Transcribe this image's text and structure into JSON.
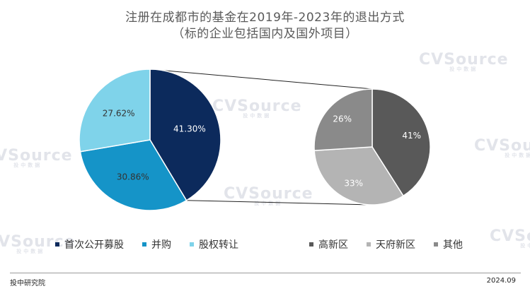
{
  "title": "注册在成都市的基金在2019年-2023年的退出方式",
  "subtitle": "（标的企业包括国内及国外项目）",
  "footer": {
    "source": "投中研究院",
    "date": "2024.09"
  },
  "watermark": {
    "text": "CVSource",
    "sub": "投中数据"
  },
  "chart_data": [
    {
      "type": "pie",
      "labels": [
        "首次公开募股",
        "并购",
        "股权转让"
      ],
      "values": [
        41.3,
        30.86,
        27.62
      ],
      "value_labels": [
        "41.30%",
        "30.86%",
        "27.62%"
      ],
      "colors": [
        "#0c2a5c",
        "#1594c8",
        "#7fd3ea"
      ],
      "label_colors": [
        "#ffffff",
        "#333333",
        "#333333"
      ],
      "legend_position": "bottom"
    },
    {
      "type": "pie",
      "labels": [
        "高新区",
        "天府新区",
        "其他"
      ],
      "values": [
        41,
        33,
        26
      ],
      "value_labels": [
        "41%",
        "33%",
        "26%"
      ],
      "colors": [
        "#595959",
        "#b4b4b4",
        "#8a8a8a"
      ],
      "label_colors": [
        "#ffffff",
        "#ffffff",
        "#ffffff"
      ],
      "legend_position": "bottom"
    }
  ]
}
